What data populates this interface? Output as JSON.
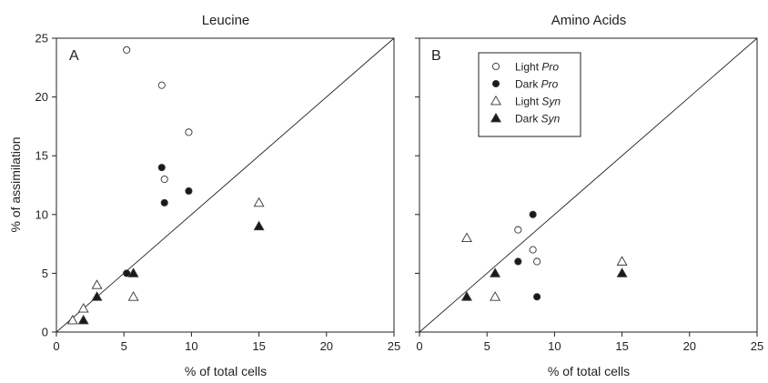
{
  "chart_data": [
    {
      "type": "scatter",
      "title": "Leucine",
      "panel_label": "A",
      "xlabel": "% of total cells",
      "ylabel": "% of assimilation",
      "xlim": [
        0,
        25
      ],
      "ylim": [
        0,
        25
      ],
      "xticks": [
        "0",
        "5",
        "10",
        "15",
        "20",
        "25"
      ],
      "yticks": [
        "0",
        "5",
        "10",
        "15",
        "20",
        "25"
      ],
      "reference_line": "1:1 diagonal",
      "grid": false,
      "legend": null,
      "series": [
        {
          "name": "Light Pro",
          "marker": "circle-open",
          "points": [
            [
              5.2,
              24
            ],
            [
              7.8,
              21
            ],
            [
              9.8,
              17
            ],
            [
              8,
              13
            ]
          ]
        },
        {
          "name": "Dark Pro",
          "marker": "circle-filled",
          "points": [
            [
              7.8,
              14
            ],
            [
              8,
              11
            ],
            [
              9.8,
              12
            ],
            [
              5.2,
              5
            ]
          ]
        },
        {
          "name": "Light Syn",
          "marker": "triangle-open",
          "points": [
            [
              1.2,
              1
            ],
            [
              2,
              2
            ],
            [
              3,
              4
            ],
            [
              5.7,
              3
            ],
            [
              15,
              11
            ]
          ]
        },
        {
          "name": "Dark Syn",
          "marker": "triangle-filled",
          "points": [
            [
              2,
              1
            ],
            [
              3,
              3
            ],
            [
              5.7,
              5
            ],
            [
              15,
              9
            ]
          ]
        }
      ]
    },
    {
      "type": "scatter",
      "title": "Amino Acids",
      "panel_label": "B",
      "xlabel": "%  of total cells",
      "ylabel": "",
      "xlim": [
        0,
        25
      ],
      "ylim": [
        0,
        25
      ],
      "xticks": [
        "0",
        "5",
        "10",
        "15",
        "20",
        "25"
      ],
      "yticks": [],
      "reference_line": "1:1 diagonal",
      "grid": false,
      "legend": {
        "placement": "top-left inside"
      },
      "series": [
        {
          "name": "Light Pro",
          "marker": "circle-open",
          "points": [
            [
              7.3,
              8.7
            ],
            [
              8.4,
              7
            ],
            [
              8.7,
              6
            ]
          ]
        },
        {
          "name": "Dark Pro",
          "marker": "circle-filled",
          "points": [
            [
              8.4,
              10
            ],
            [
              7.3,
              6
            ],
            [
              8.7,
              3
            ]
          ]
        },
        {
          "name": "Light Syn",
          "marker": "triangle-open",
          "points": [
            [
              3.5,
              8
            ],
            [
              5.6,
              3
            ],
            [
              15,
              6
            ]
          ]
        },
        {
          "name": "Dark Syn",
          "marker": "triangle-filled",
          "points": [
            [
              3.5,
              3
            ],
            [
              5.6,
              5
            ],
            [
              15,
              5
            ]
          ]
        }
      ]
    }
  ],
  "legend_entries": [
    {
      "prefix": "Light ",
      "italic": "Pro",
      "marker": "circle-open"
    },
    {
      "prefix": "Dark ",
      "italic": "Pro",
      "marker": "circle-filled"
    },
    {
      "prefix": "Light ",
      "italic": "Syn",
      "marker": "triangle-open"
    },
    {
      "prefix": "Dark ",
      "italic": "Syn",
      "marker": "triangle-filled"
    }
  ],
  "colors": {
    "axis": "#222222",
    "marker_fill_dark": "#1a1a1a",
    "marker_fill_light": "#ffffff"
  }
}
